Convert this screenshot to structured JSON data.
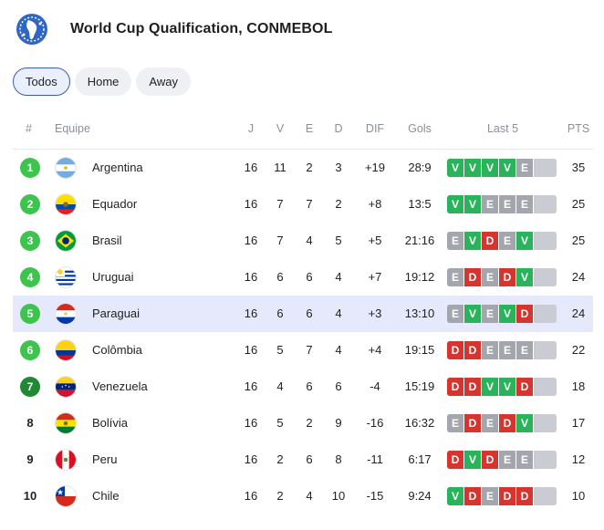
{
  "header": {
    "title": "World Cup Qualification, CONMEBOL",
    "logo_icon": "conmebol-globe-logo"
  },
  "tabs": [
    {
      "label": "Todos",
      "active": true
    },
    {
      "label": "Home",
      "active": false
    },
    {
      "label": "Away",
      "active": false
    }
  ],
  "columns": {
    "rank": "#",
    "team": "Equipe",
    "j": "J",
    "v": "V",
    "e": "E",
    "d": "D",
    "dif": "DIF",
    "gols": "Gols",
    "last5": "Last 5",
    "pts": "PTS"
  },
  "colors": {
    "win": "#29b35a",
    "loss": "#d5342f",
    "draw": "#a3a6ad",
    "qualify": "#3cc44d",
    "playoff": "#1f8a33",
    "highlight": "#e5e9fb"
  },
  "rows": [
    {
      "rank": "1",
      "badge": "green",
      "team": "Argentina",
      "flag": "argentina",
      "j": "16",
      "v": "11",
      "e": "2",
      "d": "3",
      "dif": "+19",
      "gols": "28:9",
      "last5": [
        "V",
        "V",
        "V",
        "V",
        "E"
      ],
      "pts": "35"
    },
    {
      "rank": "2",
      "badge": "green",
      "team": "Equador",
      "flag": "ecuador",
      "j": "16",
      "v": "7",
      "e": "7",
      "d": "2",
      "dif": "+8",
      "gols": "13:5",
      "last5": [
        "V",
        "V",
        "E",
        "E",
        "E"
      ],
      "pts": "25"
    },
    {
      "rank": "3",
      "badge": "green",
      "team": "Brasil",
      "flag": "brazil",
      "j": "16",
      "v": "7",
      "e": "4",
      "d": "5",
      "dif": "+5",
      "gols": "21:16",
      "last5": [
        "E",
        "V",
        "D",
        "E",
        "V"
      ],
      "pts": "25"
    },
    {
      "rank": "4",
      "badge": "green",
      "team": "Uruguai",
      "flag": "uruguay",
      "j": "16",
      "v": "6",
      "e": "6",
      "d": "4",
      "dif": "+7",
      "gols": "19:12",
      "last5": [
        "E",
        "D",
        "E",
        "D",
        "V"
      ],
      "pts": "24"
    },
    {
      "rank": "5",
      "badge": "green",
      "team": "Paraguai",
      "flag": "paraguay",
      "j": "16",
      "v": "6",
      "e": "6",
      "d": "4",
      "dif": "+3",
      "gols": "13:10",
      "last5": [
        "E",
        "V",
        "E",
        "V",
        "D"
      ],
      "pts": "24",
      "highlight": true
    },
    {
      "rank": "6",
      "badge": "green",
      "team": "Colômbia",
      "flag": "colombia",
      "j": "16",
      "v": "5",
      "e": "7",
      "d": "4",
      "dif": "+4",
      "gols": "19:15",
      "last5": [
        "D",
        "D",
        "E",
        "E",
        "E"
      ],
      "pts": "22"
    },
    {
      "rank": "7",
      "badge": "dark",
      "team": "Venezuela",
      "flag": "venezuela",
      "j": "16",
      "v": "4",
      "e": "6",
      "d": "6",
      "dif": "-4",
      "gols": "15:19",
      "last5": [
        "D",
        "D",
        "V",
        "V",
        "D"
      ],
      "pts": "18"
    },
    {
      "rank": "8",
      "badge": "none",
      "team": "Bolívia",
      "flag": "bolivia",
      "j": "16",
      "v": "5",
      "e": "2",
      "d": "9",
      "dif": "-16",
      "gols": "16:32",
      "last5": [
        "E",
        "D",
        "E",
        "D",
        "V"
      ],
      "pts": "17"
    },
    {
      "rank": "9",
      "badge": "none",
      "team": "Peru",
      "flag": "peru",
      "j": "16",
      "v": "2",
      "e": "6",
      "d": "8",
      "dif": "-11",
      "gols": "6:17",
      "last5": [
        "D",
        "V",
        "D",
        "E",
        "E"
      ],
      "pts": "12"
    },
    {
      "rank": "10",
      "badge": "none",
      "team": "Chile",
      "flag": "chile",
      "j": "16",
      "v": "2",
      "e": "4",
      "d": "10",
      "dif": "-15",
      "gols": "9:24",
      "last5": [
        "V",
        "D",
        "E",
        "D",
        "D"
      ],
      "pts": "10"
    }
  ]
}
